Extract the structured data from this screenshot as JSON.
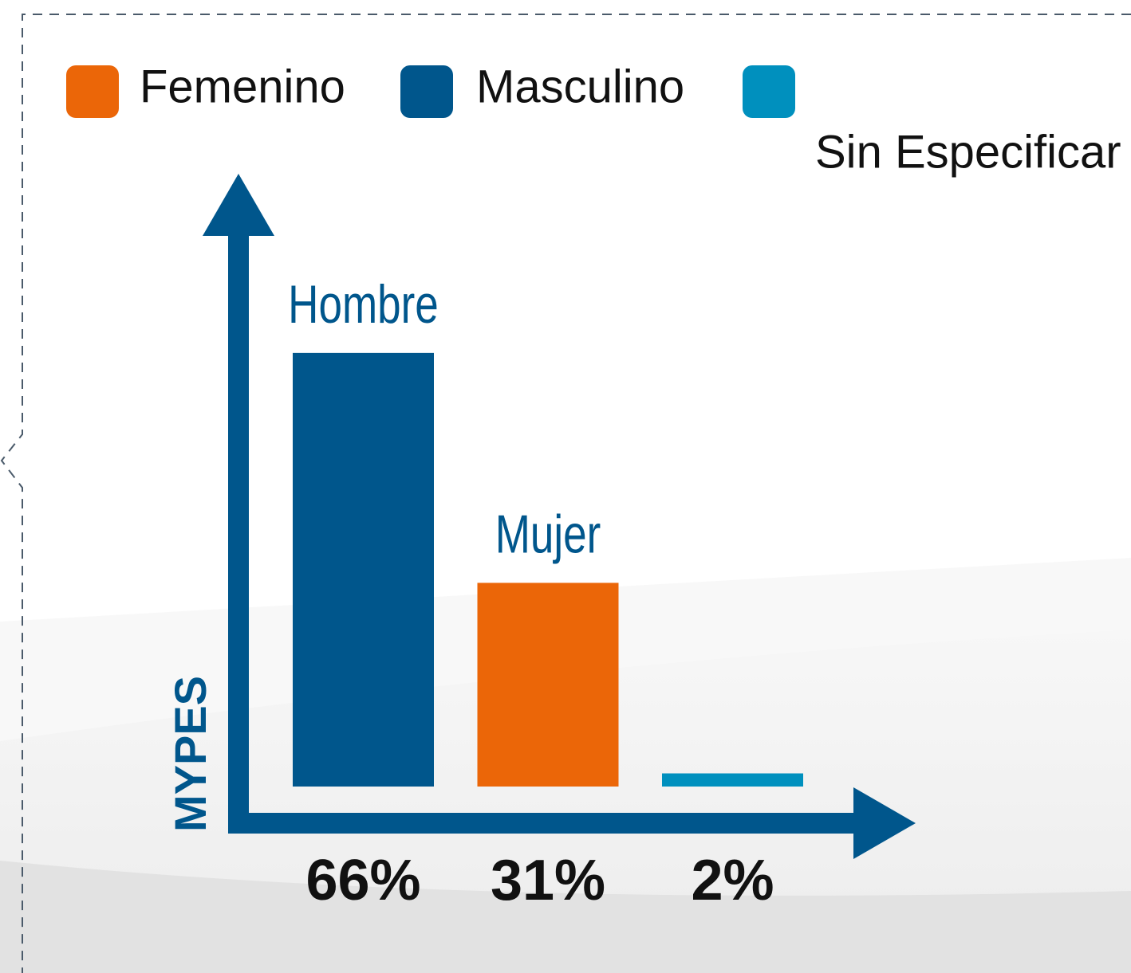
{
  "chart_data": {
    "type": "bar",
    "legend": [
      {
        "name": "Femenino",
        "color": "#eb6608"
      },
      {
        "name": "Masculino",
        "color": "#00568c"
      },
      {
        "name": "Sin Especificar",
        "color": "#0090be"
      }
    ],
    "y_label": "MYPES",
    "categories": [
      "Hombre",
      "Mujer",
      null
    ],
    "values": [
      66,
      31,
      2
    ],
    "value_labels": [
      "66%",
      "31%",
      "2%"
    ],
    "colors": [
      "#00568c",
      "#eb6608",
      "#0090be"
    ],
    "ylim": [
      0,
      90
    ]
  }
}
